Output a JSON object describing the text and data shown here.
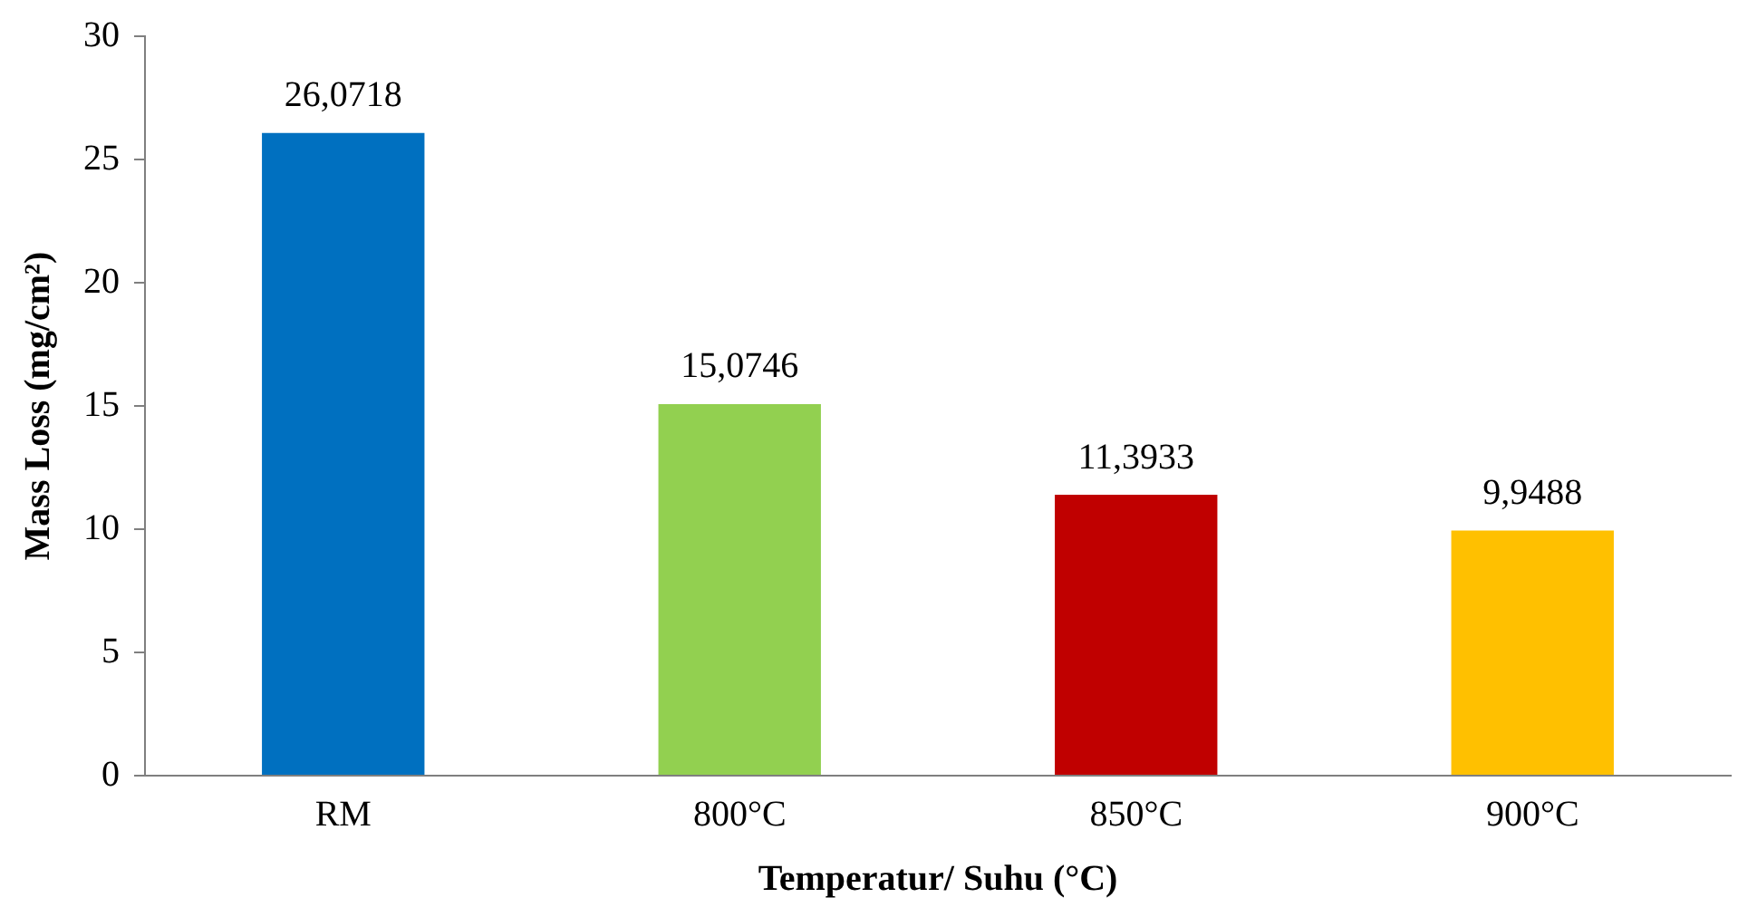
{
  "chart_data": {
    "type": "bar",
    "xlabel": "Temperatur/ Suhu (°C)",
    "ylabel": "Mass Loss (mg/cm²)",
    "categories": [
      "RM",
      "800°C",
      "850°C",
      "900°C"
    ],
    "values": [
      26.0718,
      15.0746,
      11.3933,
      9.9488
    ],
    "colors": [
      "#0070c0",
      "#92d050",
      "#c00000",
      "#ffc000"
    ],
    "value_labels": [
      "26,0718",
      "15,0746",
      "11,3933",
      "9,9488"
    ],
    "ylim": [
      0,
      30
    ],
    "yticks": [
      0,
      5,
      10,
      15,
      20,
      25,
      30
    ],
    "grid": false,
    "legend": false
  }
}
